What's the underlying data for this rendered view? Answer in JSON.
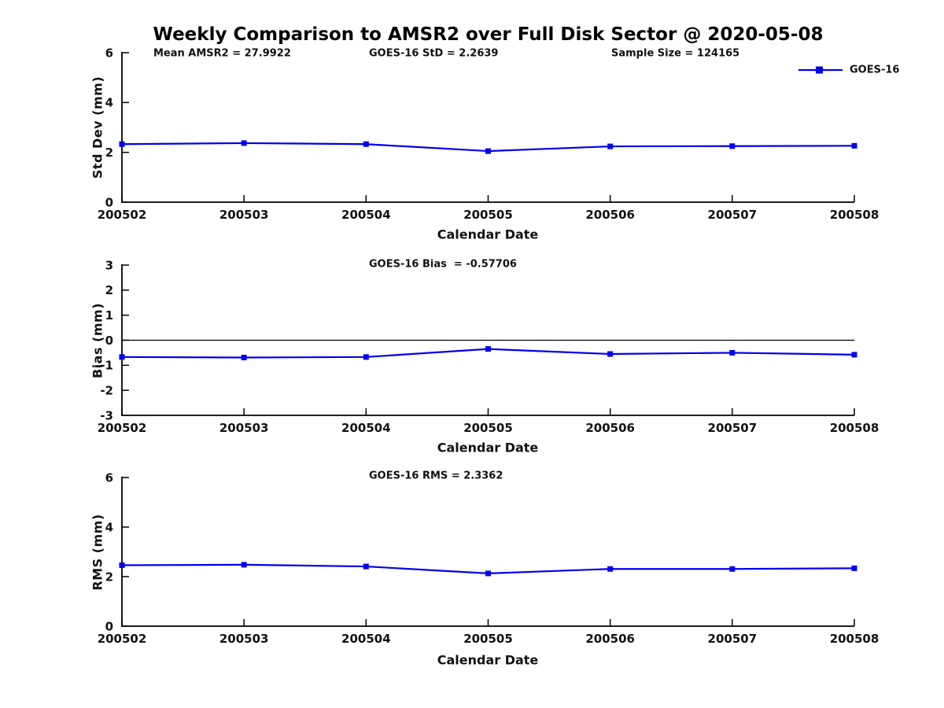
{
  "title": "Weekly Comparison to AMSR2 over Full Disk Sector @ 2020-05-08",
  "legend": {
    "label": "GOES-16",
    "color": "#0000ee"
  },
  "colors": {
    "series": "#0000ee",
    "axis": "#000000",
    "background": "#ffffff"
  },
  "chart_data": [
    {
      "type": "line",
      "x": [
        200502,
        200503,
        200504,
        200505,
        200506,
        200507,
        200508
      ],
      "xlabel": "Calendar Date",
      "ylabel": "Std Dev (mm)",
      "ylim": [
        0,
        6
      ],
      "yticks": [
        0,
        2,
        4,
        6
      ],
      "grid": false,
      "zero_line": false,
      "legend_position": "top-right-outside",
      "series": [
        {
          "name": "GOES-16",
          "color": "#0000ee",
          "marker": "square",
          "values": [
            2.33,
            2.37,
            2.33,
            2.05,
            2.24,
            2.25,
            2.2639
          ]
        }
      ],
      "annotations": [
        "Mean AMSR2 = 27.9922",
        "GOES-16 StD = 2.2639",
        "Sample Size = 124165"
      ]
    },
    {
      "type": "line",
      "x": [
        200502,
        200503,
        200504,
        200505,
        200506,
        200507,
        200508
      ],
      "xlabel": "Calendar Date",
      "ylabel": "Bias (mm)",
      "ylim": [
        -3,
        3
      ],
      "yticks": [
        -3,
        -2,
        -1,
        0,
        1,
        2,
        3
      ],
      "grid": false,
      "zero_line": true,
      "series": [
        {
          "name": "GOES-16",
          "color": "#0000ee",
          "marker": "square",
          "values": [
            -0.67,
            -0.69,
            -0.67,
            -0.35,
            -0.55,
            -0.5,
            -0.57706
          ]
        }
      ],
      "annotations": [
        "GOES-16 Bias  = -0.57706"
      ]
    },
    {
      "type": "line",
      "x": [
        200502,
        200503,
        200504,
        200505,
        200506,
        200507,
        200508
      ],
      "xlabel": "Calendar Date",
      "ylabel": "RMS (mm)",
      "ylim": [
        0,
        6
      ],
      "yticks": [
        0,
        2,
        4,
        6
      ],
      "grid": false,
      "zero_line": false,
      "series": [
        {
          "name": "GOES-16",
          "color": "#0000ee",
          "marker": "square",
          "values": [
            2.46,
            2.48,
            2.41,
            2.13,
            2.31,
            2.31,
            2.3362
          ]
        }
      ],
      "annotations": [
        "GOES-16 RMS = 2.3362"
      ]
    }
  ]
}
